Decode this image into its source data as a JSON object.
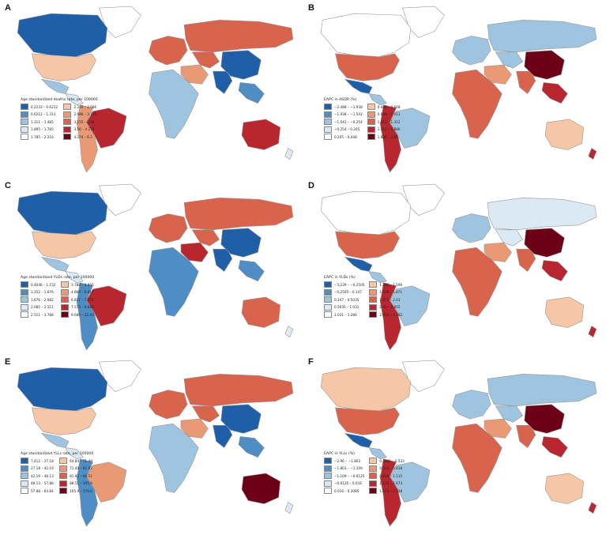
{
  "colors": {
    "ocean": "#ffffff",
    "land_outline": "#9a9a9a"
  },
  "panels": [
    {
      "id": "A",
      "legend": {
        "title": "Age standardized deaths rate, per 100000",
        "items": [
          {
            "label": "0.2233 – 0.6212",
            "color": "#1f5fa8"
          },
          {
            "label": "2.216 – 2.686",
            "color": "#f6c7a6"
          },
          {
            "label": "0.6212 – 1.311",
            "color": "#4f8ec4"
          },
          {
            "label": "2.686 – 3.155",
            "color": "#e99a74"
          },
          {
            "label": "1.311 – 1.485",
            "color": "#9fc4e0"
          },
          {
            "label": "3.155 – 3.56",
            "color": "#d9644d"
          },
          {
            "label": "1.485 – 1.785",
            "color": "#dbe9f4"
          },
          {
            "label": "3.56 – 4.274",
            "color": "#b8262f"
          },
          {
            "label": "1.785 – 2.216",
            "color": "#ffffff"
          },
          {
            "label": "4.274 – 6.2",
            "color": "#6b0017"
          }
        ]
      },
      "regions": {
        "canada": "#1f5fa8",
        "usa": "#f6c7a6",
        "mexico": "#9fc4e0",
        "centam": "#dbe9f4",
        "brazil": "#b8262f",
        "southam": "#e99a74",
        "greenland": "#ffffff",
        "europe": "#d9644d",
        "russia": "#d9644d",
        "mideast": "#e99a74",
        "africa": "#9fc4e0",
        "centasia": "#d9644d",
        "india": "#1f5fa8",
        "china": "#1f5fa8",
        "seasia": "#4f8ec4",
        "australia": "#b8262f",
        "nz": "#dbe9f4"
      }
    },
    {
      "id": "B",
      "legend": {
        "title": "EAPC in ASDR (%)",
        "items": [
          {
            "label": "−2.488 – −1.938",
            "color": "#1f5fa8"
          },
          {
            "label": "0.448 – 0.648",
            "color": "#f6c7a6"
          },
          {
            "label": "−1.938 – −1.542",
            "color": "#4f8ec4"
          },
          {
            "label": "0.648 – 1.011",
            "color": "#e99a74"
          },
          {
            "label": "−1.542 – −0.254",
            "color": "#9fc4e0"
          },
          {
            "label": "1.011 – 1.312",
            "color": "#d9644d"
          },
          {
            "label": "−0.254 – 0.205",
            "color": "#dbe9f4"
          },
          {
            "label": "1.312 – 1.886",
            "color": "#b8262f"
          },
          {
            "label": "0.205 – 0.448",
            "color": "#ffffff"
          },
          {
            "label": "1.886 – 3.86",
            "color": "#6b0017"
          }
        ]
      },
      "regions": {
        "canada": "#ffffff",
        "usa": "#d9644d",
        "mexico": "#1f5fa8",
        "centam": "#9fc4e0",
        "brazil": "#9fc4e0",
        "southam": "#b8262f",
        "greenland": "#ffffff",
        "europe": "#9fc4e0",
        "russia": "#9fc4e0",
        "mideast": "#e99a74",
        "africa": "#d9644d",
        "centasia": "#9fc4e0",
        "india": "#d9644d",
        "china": "#6b0017",
        "seasia": "#b8262f",
        "australia": "#f6c7a6",
        "nz": "#b8262f"
      }
    },
    {
      "id": "C",
      "legend": {
        "title": "Age standardized YLDs rate, per 100000",
        "items": [
          {
            "label": "0.4046 – 1.152",
            "color": "#1f5fa8"
          },
          {
            "label": "3.788 – 4.866",
            "color": "#f6c7a6"
          },
          {
            "label": "1.152 – 1.676",
            "color": "#4f8ec4"
          },
          {
            "label": "4.866 – 6.817",
            "color": "#e99a74"
          },
          {
            "label": "1.676 – 2.082",
            "color": "#9fc4e0"
          },
          {
            "label": "6.817 – 7.573",
            "color": "#d9644d"
          },
          {
            "label": "2.082 – 2.511",
            "color": "#dbe9f4"
          },
          {
            "label": "7.573 – 9.689",
            "color": "#b8262f"
          },
          {
            "label": "2.511 – 3.788",
            "color": "#ffffff"
          },
          {
            "label": "9.689 – 22.43",
            "color": "#6b0017"
          }
        ]
      },
      "regions": {
        "canada": "#1f5fa8",
        "usa": "#f6c7a6",
        "mexico": "#9fc4e0",
        "centam": "#dbe9f4",
        "brazil": "#b8262f",
        "southam": "#4f8ec4",
        "greenland": "#ffffff",
        "europe": "#d9644d",
        "russia": "#d9644d",
        "mideast": "#b8262f",
        "africa": "#4f8ec4",
        "centasia": "#d9644d",
        "india": "#1f5fa8",
        "china": "#1f5fa8",
        "seasia": "#4f8ec4",
        "australia": "#d9644d",
        "nz": "#dbe9f4"
      }
    },
    {
      "id": "D",
      "legend": {
        "title": "EAPC in YLDs (%)",
        "items": [
          {
            "label": "−3.239 – −0.2505",
            "color": "#1f5fa8"
          },
          {
            "label": "1.286 – 1.596",
            "color": "#f6c7a6"
          },
          {
            "label": "−0.2505 – 0.147",
            "color": "#4f8ec4"
          },
          {
            "label": "1.596 – 1.871",
            "color": "#e99a74"
          },
          {
            "label": "0.147 – 0.5035",
            "color": "#9fc4e0"
          },
          {
            "label": "1.871 – 2.43",
            "color": "#d9644d"
          },
          {
            "label": "0.5035 – 1.031",
            "color": "#dbe9f4"
          },
          {
            "label": "2.43 – 2.855",
            "color": "#b8262f"
          },
          {
            "label": "1.031 – 1.286",
            "color": "#ffffff"
          },
          {
            "label": "2.855 – 4.382",
            "color": "#6b0017"
          }
        ]
      },
      "regions": {
        "canada": "#ffffff",
        "usa": "#d9644d",
        "mexico": "#1f5fa8",
        "centam": "#9fc4e0",
        "brazil": "#9fc4e0",
        "southam": "#b8262f",
        "greenland": "#ffffff",
        "europe": "#9fc4e0",
        "russia": "#dbe9f4",
        "mideast": "#e99a74",
        "africa": "#d9644d",
        "centasia": "#dbe9f4",
        "india": "#d9644d",
        "china": "#6b0017",
        "seasia": "#b8262f",
        "australia": "#f6c7a6",
        "nz": "#b8262f"
      }
    },
    {
      "id": "E",
      "legend": {
        "title": "Age standardized YLLs rate, per 100000",
        "items": [
          {
            "label": "7.412 – 27.18",
            "color": "#1f5fa8"
          },
          {
            "label": "64.84 – 71.49",
            "color": "#f6c7a6"
          },
          {
            "label": "27.18 – 42.19",
            "color": "#4f8ec4"
          },
          {
            "label": "71.49 – 81.92",
            "color": "#e99a74"
          },
          {
            "label": "42.19 – 48.13",
            "color": "#9fc4e0"
          },
          {
            "label": "81.92 – 88.51",
            "color": "#d9644d"
          },
          {
            "label": "48.13 – 57.88",
            "color": "#dbe9f4"
          },
          {
            "label": "88.51 – 105.9",
            "color": "#b8262f"
          },
          {
            "label": "57.88 – 64.84",
            "color": "#ffffff"
          },
          {
            "label": "105.9 – 179.0",
            "color": "#6b0017"
          }
        ]
      },
      "regions": {
        "canada": "#1f5fa8",
        "usa": "#f6c7a6",
        "mexico": "#9fc4e0",
        "centam": "#dbe9f4",
        "brazil": "#e99a74",
        "southam": "#4f8ec4",
        "greenland": "#ffffff",
        "europe": "#d9644d",
        "russia": "#d9644d",
        "mideast": "#e99a74",
        "africa": "#9fc4e0",
        "centasia": "#d9644d",
        "india": "#1f5fa8",
        "china": "#1f5fa8",
        "seasia": "#4f8ec4",
        "australia": "#6b0017",
        "nz": "#dbe9f4"
      }
    },
    {
      "id": "F",
      "legend": {
        "title": "EAPC in YLLs (%)",
        "items": [
          {
            "label": "−2.96 – −1.803",
            "color": "#1f5fa8"
          },
          {
            "label": "0.3085 – 0.533",
            "color": "#f6c7a6"
          },
          {
            "label": "−1.803 – −1.109",
            "color": "#4f8ec4"
          },
          {
            "label": "0.533 – 0.818",
            "color": "#e99a74"
          },
          {
            "label": "−1.109 – −0.6125",
            "color": "#9fc4e0"
          },
          {
            "label": "0.818 – 1.115",
            "color": "#d9644d"
          },
          {
            "label": "−0.6125 – 0.016",
            "color": "#dbe9f4"
          },
          {
            "label": "1.115 – 1.673",
            "color": "#b8262f"
          },
          {
            "label": "0.016 – 0.3085",
            "color": "#ffffff"
          },
          {
            "label": "1.673 – 3.338",
            "color": "#6b0017"
          }
        ]
      },
      "regions": {
        "canada": "#f6c7a6",
        "usa": "#d9644d",
        "mexico": "#1f5fa8",
        "centam": "#9fc4e0",
        "brazil": "#9fc4e0",
        "southam": "#b8262f",
        "greenland": "#ffffff",
        "europe": "#9fc4e0",
        "russia": "#9fc4e0",
        "mideast": "#e99a74",
        "africa": "#d9644d",
        "centasia": "#9fc4e0",
        "india": "#d9644d",
        "china": "#6b0017",
        "seasia": "#b8262f",
        "australia": "#f6c7a6",
        "nz": "#b8262f"
      }
    }
  ]
}
